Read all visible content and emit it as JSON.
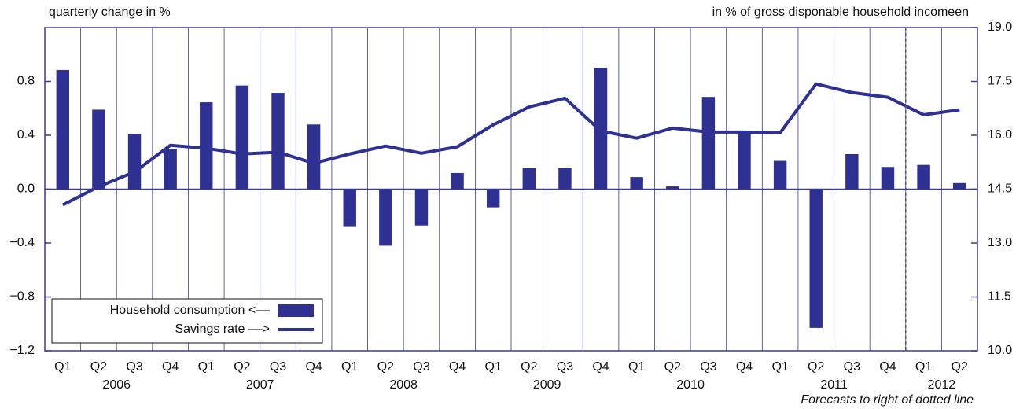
{
  "chart_data": {
    "type": "combo",
    "left_axis_label": "quarterly change in %",
    "right_axis_label": "in % of gross disponable household incomeen",
    "footnote": "Forecasts to right of dotted line",
    "categories": [
      "Q1",
      "Q2",
      "Q3",
      "Q4",
      "Q1",
      "Q2",
      "Q3",
      "Q4",
      "Q1",
      "Q2",
      "Q3",
      "Q4",
      "Q1",
      "Q2",
      "Q3",
      "Q4",
      "Q1",
      "Q2",
      "Q3",
      "Q4",
      "Q1",
      "Q2",
      "Q3",
      "Q4",
      "Q1",
      "Q2"
    ],
    "years": [
      "2006",
      "2007",
      "2008",
      "2009",
      "2010",
      "2011",
      "2012"
    ],
    "forecast_start_index": 24,
    "legend": "lower left",
    "series": [
      {
        "name": "Household consumption <––",
        "type": "bar",
        "color": "#2e3192",
        "values": [
          0.885,
          0.59,
          0.41,
          0.3,
          0.645,
          0.77,
          0.715,
          0.48,
          -0.275,
          -0.42,
          -0.27,
          0.12,
          -0.135,
          0.155,
          0.155,
          0.9,
          0.09,
          0.02,
          0.685,
          0.435,
          0.21,
          -1.03,
          0.26,
          0.165,
          0.18,
          0.045
        ]
      },
      {
        "name": "Savings rate ––>",
        "type": "line",
        "axis": "y2",
        "color": "#2e3192",
        "values": [
          14.06,
          14.57,
          14.98,
          15.72,
          15.64,
          15.48,
          15.53,
          15.22,
          15.48,
          15.7,
          15.5,
          15.68,
          16.29,
          16.79,
          17.03,
          16.12,
          15.92,
          16.2,
          16.09,
          16.09,
          16.07,
          17.43,
          17.19,
          17.06,
          16.57,
          16.71
        ]
      }
    ],
    "ylim": [
      -1.2,
      1.2
    ],
    "yticks": [
      {
        "value": -1.2,
        "label": "−1.2"
      },
      {
        "value": -0.8,
        "label": "−0.8"
      },
      {
        "value": -0.4,
        "label": "−0.4"
      },
      {
        "value": 0,
        "label": "0.0"
      },
      0.4,
      0.8
    ],
    "y2lim": [
      10,
      19
    ],
    "y2ticks": [
      {
        "value": 10,
        "label": "10.0"
      },
      11.5,
      {
        "value": 13,
        "label": "13.0"
      },
      14.5,
      {
        "value": 16,
        "label": "16.0"
      },
      17.5,
      {
        "value": 19,
        "label": "19.0"
      }
    ]
  }
}
